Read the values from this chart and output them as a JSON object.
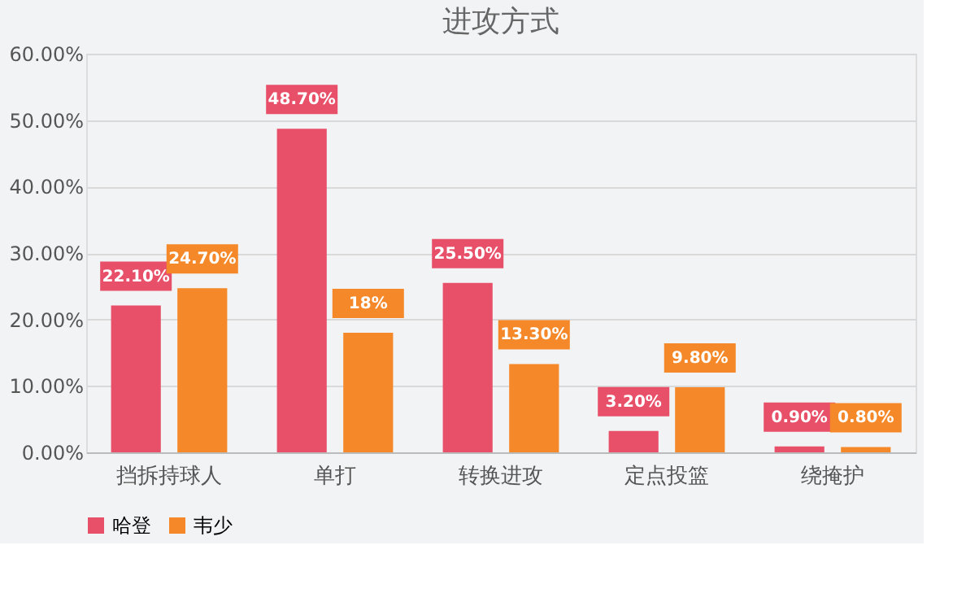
{
  "chart_data": {
    "type": "bar",
    "title": "进攻方式",
    "categories": [
      "挡拆持球人",
      "单打",
      "转换进攻",
      "定点投篮",
      "绕掩护"
    ],
    "series": [
      {
        "name": "哈登",
        "color": "#e8506a",
        "values": [
          22.1,
          48.7,
          25.5,
          3.2,
          0.9
        ],
        "value_labels": [
          "22.10%",
          "48.70%",
          "25.50%",
          "3.20%",
          "0.90%"
        ]
      },
      {
        "name": "韦少",
        "color": "#f5892a",
        "values": [
          24.7,
          18,
          13.3,
          9.8,
          0.8
        ],
        "value_labels": [
          "24.70%",
          "18%",
          "13.30%",
          "9.80%",
          "0.80%"
        ]
      }
    ],
    "ylim": [
      0,
      60
    ],
    "yticks": [
      {
        "value": 0,
        "label": "0.00%"
      },
      {
        "value": 10,
        "label": "10.00%"
      },
      {
        "value": 20,
        "label": "20.00%"
      },
      {
        "value": 30,
        "label": "30.00%"
      },
      {
        "value": 40,
        "label": "40.00%"
      },
      {
        "value": 50,
        "label": "50.00%"
      },
      {
        "value": 60,
        "label": "60.00%"
      }
    ],
    "grid": "y",
    "legend": "bottom"
  }
}
